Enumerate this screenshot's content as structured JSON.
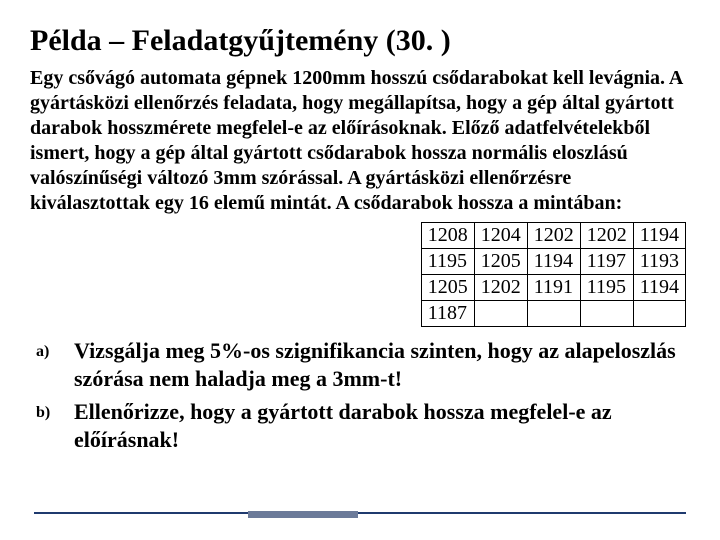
{
  "title": "Példa – Feladatgyűjtemény (30. )",
  "problem": "Egy csővágó automata gépnek 1200mm hosszú csődarabokat kell levágnia. A gyártásközi ellenőrzés feladata, hogy megállapítsa, hogy a gép által gyártott darabok hosszmérete megfelel-e az előírásoknak. Előző adatfelvételekből ismert, hogy a gép által gyártott csődarabok hossza normális eloszlású valószínűségi változó 3mm szórással. A gyártásközi ellenőrzésre kiválasztottak egy 16 elemű mintát. A csődarabok hossza a mintában:",
  "sample": {
    "columns": 5,
    "rows": [
      [
        "1208",
        "1204",
        "1202",
        "1202",
        "1194"
      ],
      [
        "1195",
        "1205",
        "1194",
        "1197",
        "1193"
      ],
      [
        "1205",
        "1202",
        "1191",
        "1195",
        "1194"
      ],
      [
        "1187",
        "",
        "",
        "",
        ""
      ]
    ],
    "border_color": "#000000",
    "font_size": 20
  },
  "questions": [
    {
      "marker": "a)",
      "text": "Vizsgálja meg 5%-os szignifikancia szinten, hogy az alapeloszlás szórása nem haladja meg a 3mm-t!"
    },
    {
      "marker": "b)",
      "text": "Ellenőrizze, hogy a gyártott darabok hossza megfelel-e az előírásnak!"
    }
  ],
  "colors": {
    "text": "#000000",
    "background": "#ffffff",
    "footer_line": "#1f3a6e",
    "footer_accent": "#6b7a99"
  }
}
